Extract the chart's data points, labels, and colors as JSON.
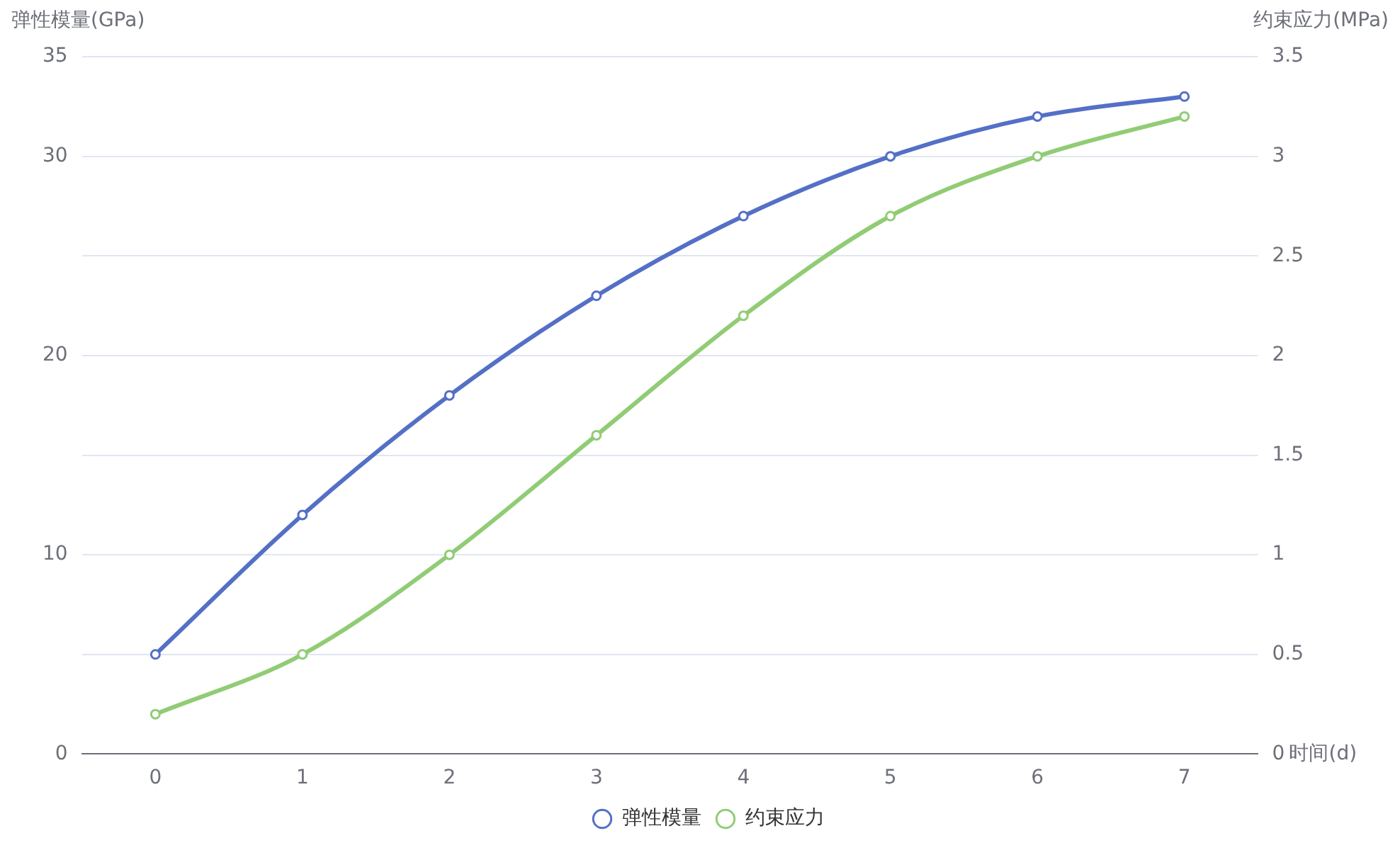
{
  "chart_data": {
    "type": "line",
    "xlabel": "时间(d)",
    "ylabel": "弹性模量(GPa)",
    "y2label": "约束应力(MPa)",
    "categories": [
      "0",
      "1",
      "2",
      "3",
      "4",
      "5",
      "6",
      "7"
    ],
    "series": [
      {
        "name": "弹性模量",
        "color": "#5470c6",
        "values": [
          5,
          12,
          18,
          23,
          27,
          30,
          32,
          33
        ]
      },
      {
        "name": "约束应力",
        "color": "#91cc75",
        "axis": "y2",
        "values": [
          0.2,
          0.5,
          1.0,
          1.6,
          2.2,
          2.7,
          3.0,
          3.2
        ]
      }
    ],
    "ylim": [
      0,
      35
    ],
    "yticks": [
      0,
      {
        "value": 5,
        "label": null
      },
      10,
      {
        "value": 15,
        "label": null
      },
      20,
      {
        "value": 25,
        "label": null
      },
      30,
      35
    ],
    "y2lim": [
      0,
      3.5
    ],
    "y2ticks": [
      0,
      0.5,
      1,
      1.5,
      2,
      2.5,
      3,
      3.5
    ],
    "grid": "y",
    "legend": "bottom",
    "marker": "circle",
    "line_style": "solid"
  }
}
